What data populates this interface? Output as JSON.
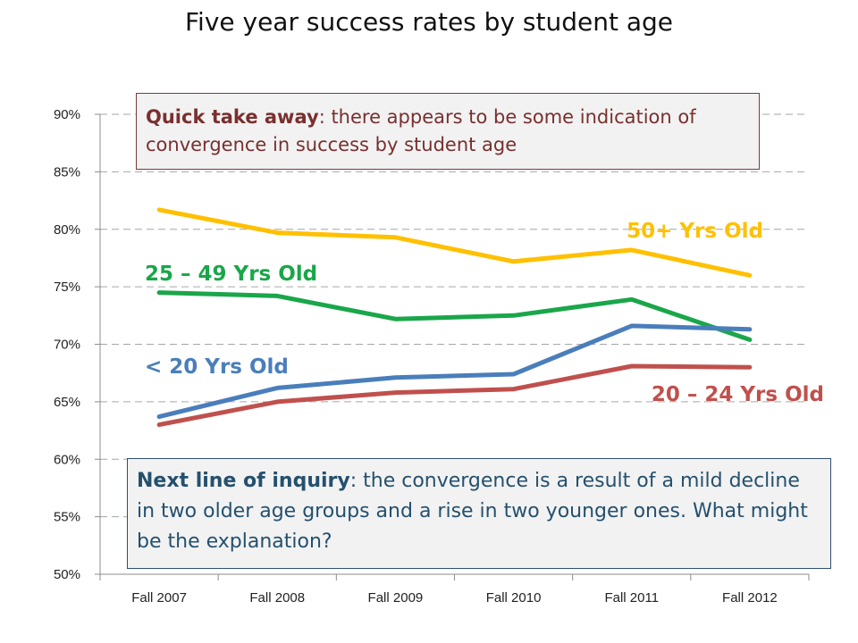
{
  "chart_data": {
    "type": "line",
    "title": "Five year success rates by student age",
    "categories": [
      "Fall 2007",
      "Fall 2008",
      "Fall 2009",
      "Fall 2010",
      "Fall 2011",
      "Fall 2012"
    ],
    "ylim": [
      0.5,
      0.9
    ],
    "yticks": [
      0.5,
      0.55,
      0.6,
      0.65,
      0.7,
      0.75,
      0.8,
      0.85,
      0.9
    ],
    "ytick_labels": [
      "50%",
      "55%",
      "60%",
      "65%",
      "70%",
      "75%",
      "80%",
      "85%",
      "90%"
    ],
    "grid": true,
    "series": [
      {
        "name": "50+ Yrs Old",
        "color": "#ffc000",
        "values": [
          0.817,
          0.797,
          0.793,
          0.772,
          0.782,
          0.76
        ]
      },
      {
        "name": "25 – 49 Yrs Old",
        "color": "#1aa64a",
        "values": [
          0.745,
          0.742,
          0.722,
          0.725,
          0.739,
          0.704
        ]
      },
      {
        "name": "< 20 Yrs Old",
        "color": "#4a7ebb",
        "values": [
          0.637,
          0.662,
          0.671,
          0.674,
          0.716,
          0.713
        ]
      },
      {
        "name": "20 – 24 Yrs Old",
        "color": "#c0504d",
        "values": [
          0.63,
          0.65,
          0.658,
          0.661,
          0.681,
          0.68
        ]
      }
    ]
  },
  "notes": {
    "top_bold": "Quick take away",
    "top_text": ": there appears to be some indication of convergence in success by student age",
    "bottom_bold": "Next line of inquiry",
    "bottom_text": ": the convergence is a result of a mild decline in two older age groups and a rise in two younger ones. What might be the explanation?"
  }
}
